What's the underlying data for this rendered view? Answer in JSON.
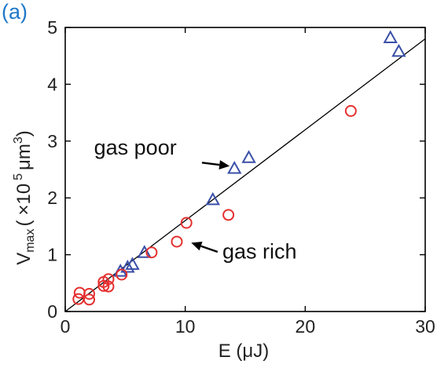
{
  "panel_label": "(a)",
  "colors": {
    "panel_label": "#1f78c8",
    "gas_poor": "#3a4fa8",
    "gas_rich": "#e53030",
    "fit_line": "#000000",
    "axis": "#000000"
  },
  "chart_data": {
    "type": "scatter",
    "xlabel": "E (μJ)",
    "ylabel": {
      "base": "V",
      "sub": "max",
      "paren_open": "(",
      "times": "×10",
      "sup": "5",
      "unit": "μm",
      "unit_sup": "3",
      "paren_close": ")"
    },
    "xlim": [
      0,
      30
    ],
    "ylim": [
      0,
      5
    ],
    "xticks": [
      0,
      10,
      20,
      30
    ],
    "yticks": [
      0,
      1,
      2,
      3,
      4,
      5
    ],
    "grid": false,
    "series": [
      {
        "marker": "triangle",
        "color": "#3a4fa8",
        "points": [
          [
            4.6,
            0.71
          ],
          [
            5.2,
            0.78
          ],
          [
            5.6,
            0.83
          ],
          [
            6.6,
            1.04
          ],
          [
            12.3,
            1.97
          ],
          [
            14.1,
            2.52
          ],
          [
            15.3,
            2.71
          ],
          [
            27.1,
            4.82
          ],
          [
            27.8,
            4.58
          ]
        ]
      },
      {
        "marker": "circle",
        "color": "#e53030",
        "points": [
          [
            1.1,
            0.22
          ],
          [
            1.2,
            0.33
          ],
          [
            2.0,
            0.21
          ],
          [
            2.0,
            0.31
          ],
          [
            3.2,
            0.45
          ],
          [
            3.2,
            0.52
          ],
          [
            3.6,
            0.44
          ],
          [
            3.6,
            0.57
          ],
          [
            4.7,
            0.65
          ],
          [
            7.2,
            1.04
          ],
          [
            9.3,
            1.23
          ],
          [
            10.1,
            1.56
          ],
          [
            13.6,
            1.7
          ],
          [
            23.8,
            3.53
          ]
        ]
      }
    ],
    "fit_line": {
      "x": [
        0,
        30
      ],
      "y": [
        0,
        4.8
      ]
    },
    "annotations": [
      {
        "text": "gas poor",
        "text_pos": [
          2.4,
          2.76
        ],
        "arrow_from": [
          11.4,
          2.62
        ],
        "arrow_to": [
          13.7,
          2.56
        ]
      },
      {
        "text": "gas rich",
        "text_pos": [
          13.1,
          0.93
        ],
        "arrow_from": [
          12.7,
          1.05
        ],
        "arrow_to": [
          10.5,
          1.21
        ]
      }
    ]
  }
}
